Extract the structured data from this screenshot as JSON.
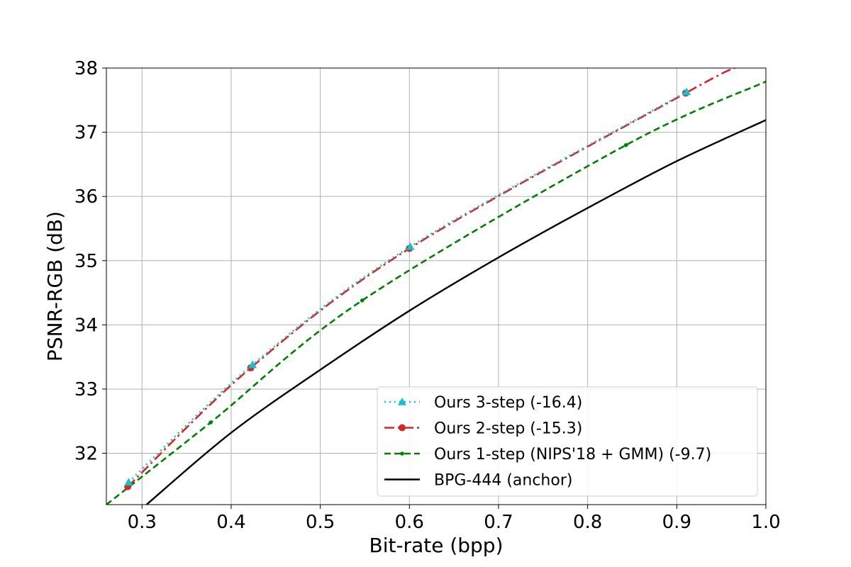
{
  "chart_data": {
    "type": "line",
    "title": "",
    "xlabel": "Bit-rate (bpp)",
    "ylabel": "PSNR-RGB (dB)",
    "xlim": [
      0.26,
      1.0
    ],
    "ylim": [
      31.2,
      38.0
    ],
    "xticks": [
      "0.3",
      "0.4",
      "0.5",
      "0.6",
      "0.7",
      "0.8",
      "0.9",
      "1.0"
    ],
    "yticks": [
      "32",
      "33",
      "34",
      "35",
      "36",
      "37",
      "38"
    ],
    "grid": true,
    "legend_position": "lower-right",
    "series": [
      {
        "name": "Ours 3-step (-16.4)",
        "color": "#17becf",
        "marker": "triangle",
        "linestyle": "dotted",
        "points": [
          [
            0.285,
            31.55
          ],
          [
            0.424,
            33.38
          ],
          [
            0.601,
            35.22
          ],
          [
            0.911,
            37.63
          ]
        ]
      },
      {
        "name": "Ours 2-step (-15.3)",
        "color": "#d62728",
        "marker": "circle",
        "linestyle": "dashdot",
        "points": [
          [
            0.284,
            31.48
          ],
          [
            0.422,
            33.33
          ],
          [
            0.6,
            35.19
          ],
          [
            0.91,
            37.61
          ],
          [
            0.965,
            38.0
          ]
        ]
      },
      {
        "name": "Ours 1-step (NIPS'18 + GMM) (-9.7)",
        "color": "#008000",
        "marker": "dot",
        "linestyle": "dashed",
        "points": [
          [
            0.26,
            31.2
          ],
          [
            0.377,
            32.48
          ],
          [
            0.547,
            34.38
          ],
          [
            0.843,
            36.8
          ],
          [
            1.0,
            37.79
          ]
        ]
      },
      {
        "name": "BPG-444 (anchor)",
        "color": "#000000",
        "marker": "none",
        "linestyle": "solid",
        "points": [
          [
            0.305,
            31.2
          ],
          [
            0.4,
            32.32
          ],
          [
            0.5,
            33.3
          ],
          [
            0.6,
            34.22
          ],
          [
            0.7,
            35.05
          ],
          [
            0.8,
            35.82
          ],
          [
            0.9,
            36.55
          ],
          [
            1.0,
            37.19
          ]
        ]
      }
    ]
  }
}
